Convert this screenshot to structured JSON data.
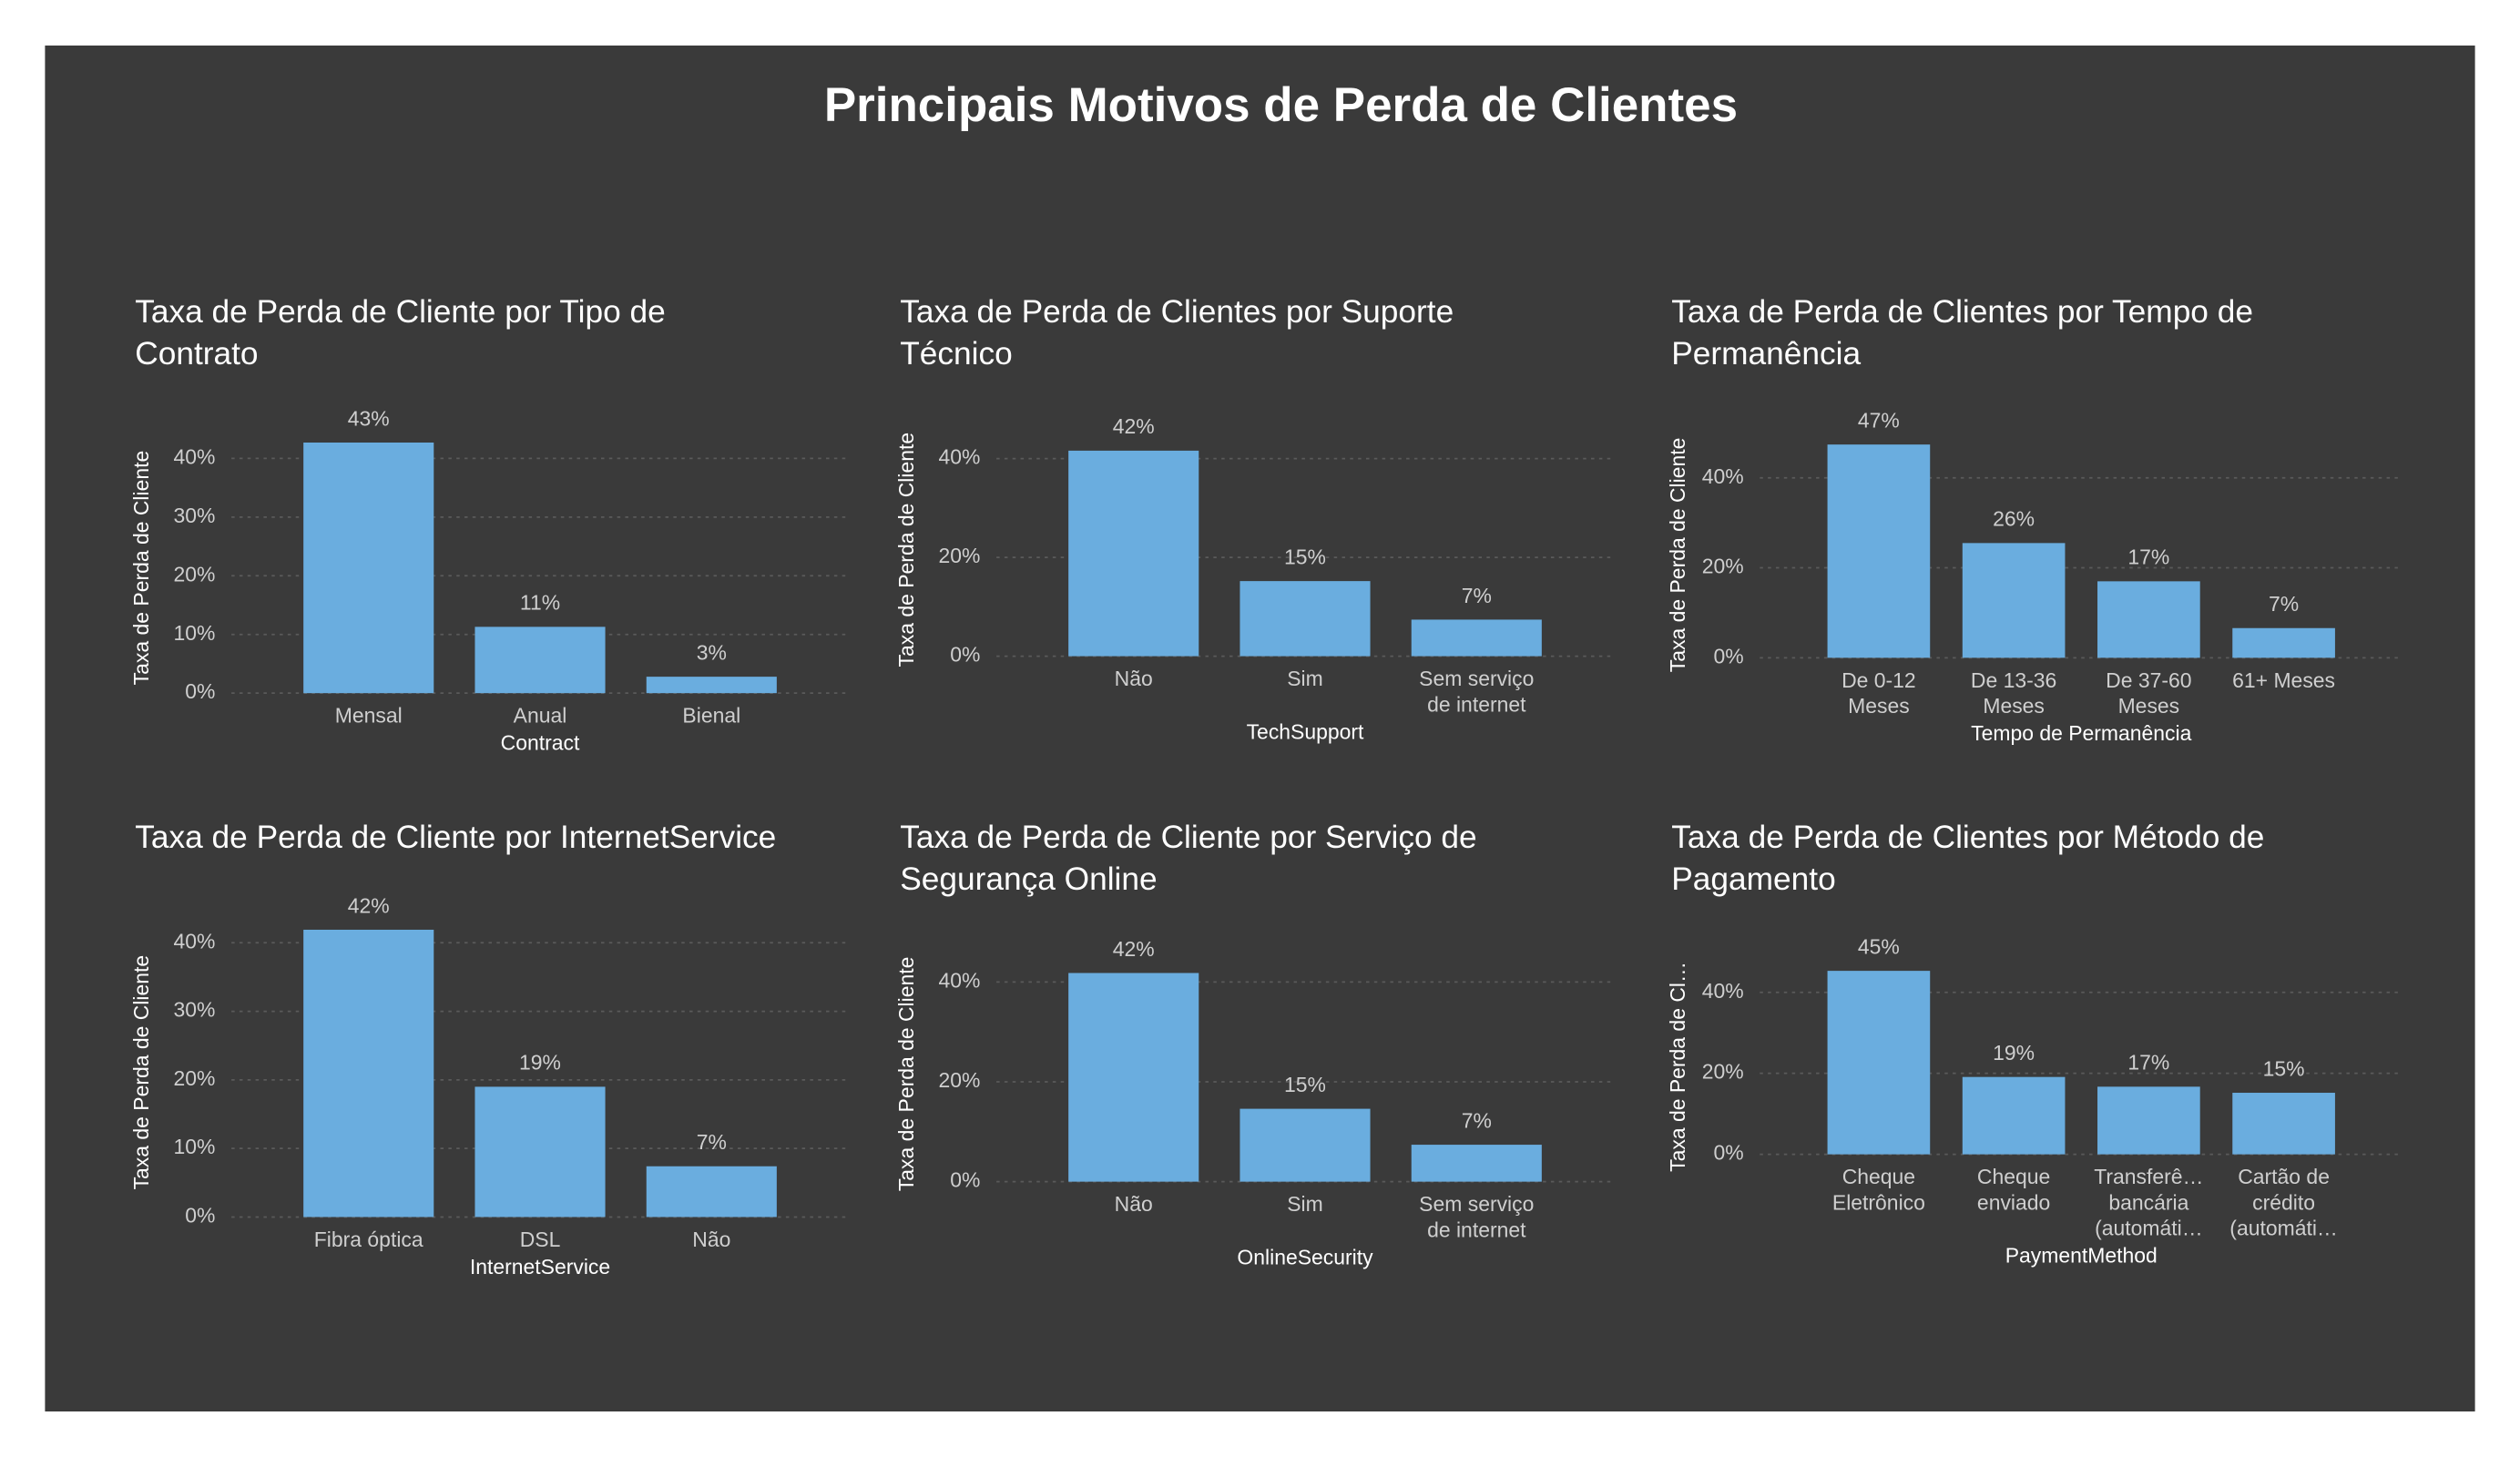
{
  "title": "Principais Motivos de Perda de Clientes",
  "chart_data": [
    {
      "type": "bar",
      "title": [
        "Taxa de Perda de Cliente por Tipo de",
        "Contrato"
      ],
      "x_label": "Contract",
      "y_label": "Taxa de Perda de Cliente",
      "color": "#6aaddf",
      "grid": true,
      "categories": [
        "Mensal",
        "Anual",
        "Bienal"
      ],
      "values": [
        42.7,
        11.3,
        2.8
      ],
      "value_labels": [
        "43%",
        "11%",
        "3%"
      ],
      "ylim": [
        0,
        46
      ],
      "yticks": [
        {
          "value": 0,
          "label": "0%"
        },
        {
          "value": 10,
          "label": "10%"
        },
        {
          "value": 20,
          "label": "20%"
        },
        {
          "value": 30,
          "label": "30%"
        },
        {
          "value": 40,
          "label": "40%"
        }
      ]
    },
    {
      "type": "bar",
      "title": [
        "Taxa de Perda de Clientes por Suporte",
        "Técnico"
      ],
      "x_label": "TechSupport",
      "y_label": "Taxa de Perda de Cliente",
      "color": "#6aaddf",
      "grid": true,
      "categories": [
        "Não",
        "Sim",
        [
          "Sem serviço",
          "de internet"
        ]
      ],
      "values": [
        41.6,
        15.2,
        7.4
      ],
      "value_labels": [
        "42%",
        "15%",
        "7%"
      ],
      "ylim": [
        0,
        47
      ],
      "yticks": [
        {
          "value": 0,
          "label": "0%"
        },
        {
          "value": 20,
          "label": "20%"
        },
        {
          "value": 40,
          "label": "40%"
        }
      ]
    },
    {
      "type": "bar",
      "title": [
        "Taxa de Perda de Clientes por Tempo de",
        "Permanência"
      ],
      "x_label": "Tempo de Permanência",
      "y_label": "Taxa de Perda de Cliente",
      "color": "#6aaddf",
      "grid": true,
      "categories": [
        [
          "De 0-12",
          "Meses"
        ],
        [
          "De 13-36",
          "Meses"
        ],
        [
          "De 37-60",
          "Meses"
        ],
        "61+ Meses"
      ],
      "values": [
        47.4,
        25.5,
        17.0,
        6.6
      ],
      "value_labels": [
        "47%",
        "26%",
        "17%",
        "7%"
      ],
      "ylim": [
        0,
        50
      ],
      "yticks": [
        {
          "value": 0,
          "label": "0%"
        },
        {
          "value": 20,
          "label": "20%"
        },
        {
          "value": 40,
          "label": "40%"
        }
      ]
    },
    {
      "type": "bar",
      "title": [
        "Taxa de Perda de Cliente por InternetService"
      ],
      "x_label": "InternetService",
      "y_label": "Taxa de Perda de Cliente",
      "color": "#6aaddf",
      "grid": true,
      "categories": [
        "Fibra óptica",
        "DSL",
        "Não"
      ],
      "values": [
        41.9,
        19.0,
        7.4
      ],
      "value_labels": [
        "42%",
        "19%",
        "7%"
      ],
      "ylim": [
        0,
        45
      ],
      "yticks": [
        {
          "value": 0,
          "label": "0%"
        },
        {
          "value": 10,
          "label": "10%"
        },
        {
          "value": 20,
          "label": "20%"
        },
        {
          "value": 30,
          "label": "30%"
        },
        {
          "value": 40,
          "label": "40%"
        }
      ]
    },
    {
      "type": "bar",
      "title": [
        "Taxa de Perda de Cliente por Serviço de",
        "Segurança Online"
      ],
      "x_label": "OnlineSecurity",
      "y_label": "Taxa de Perda de Cliente",
      "color": "#6aaddf",
      "grid": true,
      "categories": [
        "Não",
        "Sim",
        [
          "Sem serviço",
          "de internet"
        ]
      ],
      "values": [
        41.8,
        14.6,
        7.4
      ],
      "value_labels": [
        "42%",
        "15%",
        "7%"
      ],
      "ylim": [
        0,
        47
      ],
      "yticks": [
        {
          "value": 0,
          "label": "0%"
        },
        {
          "value": 20,
          "label": "20%"
        },
        {
          "value": 40,
          "label": "40%"
        }
      ]
    },
    {
      "type": "bar",
      "title": [
        "Taxa de Perda de Clientes por Método de",
        "Pagamento"
      ],
      "x_label": "PaymentMethod",
      "y_label": "Taxa de Perda de Cl…",
      "color": "#6aaddf",
      "grid": true,
      "categories": [
        [
          "Cheque",
          "Eletrônico"
        ],
        [
          "Cheque",
          "enviado"
        ],
        [
          "Transferê…",
          "bancária",
          "(automáti…"
        ],
        [
          "Cartão de",
          "crédito",
          "(automáti…"
        ]
      ],
      "values": [
        45.3,
        19.1,
        16.7,
        15.2
      ],
      "value_labels": [
        "45%",
        "19%",
        "17%",
        "15%"
      ],
      "ylim": [
        0,
        48
      ],
      "yticks": [
        {
          "value": 0,
          "label": "0%"
        },
        {
          "value": 20,
          "label": "20%"
        },
        {
          "value": 40,
          "label": "40%"
        }
      ]
    }
  ]
}
